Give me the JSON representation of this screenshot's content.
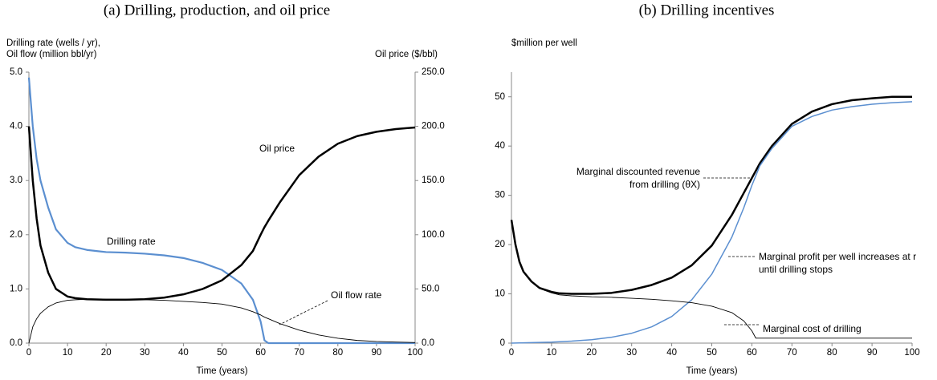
{
  "chart_data": [
    {
      "type": "line",
      "title": "(a) Drilling, production, and oil price",
      "ylabel": [
        "Drilling rate (wells / yr),",
        "Oil flow (million bbl/yr)"
      ],
      "y2label": "Oil price ($/bbl)",
      "xlabel": "Time (years)",
      "x": [
        0,
        1,
        2,
        3,
        5,
        7,
        10,
        12,
        15,
        20,
        25,
        30,
        35,
        40,
        45,
        50,
        55,
        58,
        60,
        61,
        62,
        65,
        70,
        75,
        80,
        85,
        90,
        95,
        100
      ],
      "xlim": [
        0,
        100
      ],
      "xticks": [
        0,
        10,
        20,
        30,
        40,
        50,
        60,
        70,
        80,
        90,
        100
      ],
      "ylim": [
        0,
        5
      ],
      "yticks": [
        {
          "value": 0,
          "label": "0.0"
        },
        {
          "value": 1,
          "label": "1.0"
        },
        {
          "value": 2,
          "label": "2.0"
        },
        {
          "value": 3,
          "label": "3.0"
        },
        {
          "value": 4,
          "label": "4.0"
        },
        {
          "value": 5,
          "label": "5.0"
        }
      ],
      "y2lim": [
        0,
        250
      ],
      "y2ticks": [
        {
          "value": 0,
          "label": "0.0"
        },
        {
          "value": 50,
          "label": "50.0"
        },
        {
          "value": 100,
          "label": "100.0"
        },
        {
          "value": 150,
          "label": "150.0"
        },
        {
          "value": 200,
          "label": "200.0"
        },
        {
          "value": 250,
          "label": "250.0"
        }
      ],
      "series": [
        {
          "name": "Drilling rate",
          "color": "#5b8fd0",
          "line_width": 2.2,
          "values": [
            4.9,
            4.0,
            3.4,
            3.0,
            2.5,
            2.1,
            1.85,
            1.77,
            1.72,
            1.68,
            1.67,
            1.65,
            1.62,
            1.57,
            1.48,
            1.35,
            1.1,
            0.8,
            0.4,
            0.05,
            0,
            0,
            0,
            0,
            0,
            0,
            0,
            0,
            0
          ]
        },
        {
          "name": "Oil flow rate",
          "color": "#000000",
          "line_width": 0.9,
          "values": [
            0,
            0.3,
            0.45,
            0.55,
            0.67,
            0.74,
            0.79,
            0.8,
            0.81,
            0.81,
            0.81,
            0.8,
            0.79,
            0.77,
            0.75,
            0.72,
            0.65,
            0.58,
            0.52,
            0.48,
            0.45,
            0.36,
            0.24,
            0.15,
            0.09,
            0.05,
            0.03,
            0.02,
            0.01
          ]
        },
        {
          "name": "Oil price",
          "color": "#000000",
          "line_width": 2.5,
          "axis": "y2",
          "values": [
            200,
            150,
            115,
            90,
            65,
            50,
            43,
            41.5,
            40.5,
            40,
            40,
            40.5,
            42,
            45,
            50,
            58,
            72,
            85,
            100,
            107,
            113,
            130,
            155,
            172,
            184,
            191,
            195,
            197.5,
            199
          ]
        }
      ]
    },
    {
      "type": "line",
      "title": "(b) Drilling incentives",
      "ylabel": [
        "$million per well"
      ],
      "xlabel": "Time (years)",
      "x": [
        0,
        1,
        2,
        3,
        5,
        7,
        10,
        12,
        15,
        20,
        25,
        30,
        35,
        40,
        45,
        50,
        55,
        58,
        60,
        61,
        62,
        65,
        70,
        75,
        80,
        85,
        90,
        95,
        100
      ],
      "xlim": [
        0,
        100
      ],
      "xticks": [
        0,
        10,
        20,
        30,
        40,
        50,
        60,
        70,
        80,
        90,
        100
      ],
      "ylim": [
        0,
        55
      ],
      "yticks": [
        0,
        10,
        20,
        30,
        40,
        50
      ],
      "series": [
        {
          "name": "Marginal discounted revenue from drilling (θX)",
          "color": "#000000",
          "line_width": 2.5,
          "values": [
            25,
            20,
            16.5,
            14.5,
            12.5,
            11.2,
            10.4,
            10.1,
            10,
            10,
            10.2,
            10.8,
            11.8,
            13.3,
            15.8,
            19.8,
            26,
            30.5,
            33.5,
            35,
            36.5,
            40,
            44.5,
            47,
            48.5,
            49.3,
            49.7,
            50,
            50
          ]
        },
        {
          "name": "Marginal profit per well increases at r until drilling stops",
          "color": "#5b8fd0",
          "line_width": 1.5,
          "values": [
            0,
            0.02,
            0.04,
            0.06,
            0.1,
            0.14,
            0.2,
            0.28,
            0.4,
            0.7,
            1.2,
            2,
            3.3,
            5.4,
            8.8,
            14,
            21.5,
            27.5,
            32,
            34,
            36,
            39.5,
            44,
            46,
            47.3,
            48,
            48.5,
            48.8,
            49
          ]
        },
        {
          "name": "Marginal cost of drilling",
          "color": "#000000",
          "line_width": 0.9,
          "values": [
            25,
            20,
            16.5,
            14.5,
            12.4,
            11.1,
            10.2,
            9.8,
            9.6,
            9.4,
            9.3,
            9.1,
            8.9,
            8.6,
            8.2,
            7.5,
            6.2,
            4.5,
            2.5,
            1,
            1,
            1,
            1,
            1,
            1,
            1,
            1,
            1,
            1
          ]
        }
      ]
    }
  ]
}
